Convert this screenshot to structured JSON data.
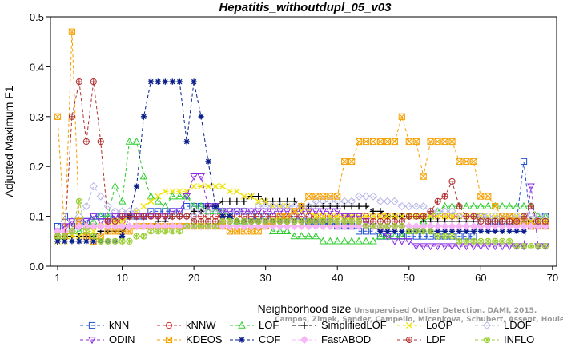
{
  "chart_data": {
    "type": "line",
    "title": "Hepatitis_withoutdupl_05_v03",
    "xlabel": "Neighborhood size",
    "ylabel": "Adjusted Maximum F1",
    "xlim": [
      0,
      70
    ],
    "ylim": [
      0,
      0.5
    ],
    "xticks": [
      1,
      10,
      20,
      30,
      40,
      50,
      60,
      70
    ],
    "yticks": [
      0.0,
      0.1,
      0.2,
      0.3,
      0.4,
      0.5
    ],
    "xtick_labels": [
      "1",
      "10",
      "20",
      "30",
      "40",
      "50",
      "60",
      "70"
    ],
    "ytick_labels": [
      "0.0",
      "0.1",
      "0.2",
      "0.3",
      "0.4",
      "0.5"
    ],
    "credit": [
      "Campos, Zimek, Sander, Campello, Micenkova, Schubert, Assent, Houle",
      "Unsupervised Outlier Detection. DAMI, 2015."
    ],
    "legend_position": "bottom",
    "x": [
      1,
      2,
      3,
      4,
      5,
      6,
      7,
      8,
      9,
      10,
      11,
      12,
      13,
      14,
      15,
      16,
      17,
      18,
      19,
      20,
      21,
      22,
      23,
      24,
      25,
      26,
      27,
      28,
      29,
      30,
      31,
      32,
      33,
      34,
      35,
      36,
      37,
      38,
      39,
      40,
      41,
      42,
      43,
      44,
      45,
      46,
      47,
      48,
      49,
      50,
      51,
      52,
      53,
      54,
      55,
      56,
      57,
      58,
      59,
      60,
      61,
      62,
      63,
      64,
      65,
      66,
      67,
      68,
      69
    ],
    "series": [
      {
        "name": "kNN",
        "color": "#1f4fd1",
        "marker": "square",
        "values": [
          0.08,
          0.1,
          0.08,
          0.08,
          0.09,
          0.1,
          0.1,
          0.1,
          0.1,
          0.1,
          0.1,
          0.1,
          0.1,
          0.11,
          0.11,
          0.11,
          0.11,
          0.11,
          0.12,
          0.12,
          0.12,
          0.12,
          0.12,
          0.11,
          0.11,
          0.11,
          0.11,
          0.1,
          0.1,
          0.1,
          0.1,
          0.1,
          0.1,
          0.1,
          0.1,
          0.09,
          0.09,
          0.09,
          0.09,
          0.08,
          0.08,
          0.08,
          0.07,
          0.07,
          0.07,
          0.06,
          0.06,
          0.06,
          0.06,
          0.06,
          0.06,
          0.06,
          0.06,
          0.06,
          0.06,
          0.06,
          0.06,
          0.06,
          0.06,
          0.1,
          0.09,
          0.09,
          0.09,
          0.09,
          0.09,
          0.21,
          0.08,
          0.09,
          0.1
        ]
      },
      {
        "name": "kNNW",
        "color": "#d22d2d",
        "marker": "circle",
        "values": [
          0.07,
          0.08,
          0.08,
          0.08,
          0.08,
          0.08,
          0.08,
          0.09,
          0.09,
          0.09,
          0.1,
          0.1,
          0.1,
          0.1,
          0.1,
          0.1,
          0.1,
          0.1,
          0.1,
          0.1,
          0.1,
          0.1,
          0.1,
          0.1,
          0.1,
          0.1,
          0.1,
          0.1,
          0.1,
          0.1,
          0.1,
          0.1,
          0.1,
          0.1,
          0.1,
          0.1,
          0.1,
          0.1,
          0.1,
          0.1,
          0.1,
          0.1,
          0.1,
          0.1,
          0.1,
          0.1,
          0.1,
          0.1,
          0.1,
          0.1,
          0.1,
          0.1,
          0.1,
          0.1,
          0.1,
          0.1,
          0.1,
          0.1,
          0.1,
          0.1,
          0.09,
          0.09,
          0.09,
          0.09,
          0.09,
          0.09,
          0.09,
          0.09,
          0.09
        ]
      },
      {
        "name": "LOF",
        "color": "#2ecc2e",
        "marker": "triangle-up",
        "values": [
          0.06,
          0.06,
          0.07,
          0.07,
          0.08,
          0.09,
          0.1,
          0.1,
          0.16,
          0.13,
          0.25,
          0.25,
          0.18,
          0.14,
          0.13,
          0.12,
          0.14,
          0.14,
          0.14,
          0.12,
          0.12,
          0.11,
          0.11,
          0.11,
          0.1,
          0.09,
          0.09,
          0.08,
          0.08,
          0.08,
          0.07,
          0.07,
          0.07,
          0.06,
          0.06,
          0.06,
          0.06,
          0.05,
          0.05,
          0.05,
          0.05,
          0.05,
          0.05,
          0.05,
          0.05,
          0.06,
          0.06,
          0.06,
          0.06,
          0.07,
          0.08,
          0.09,
          0.1,
          0.11,
          0.12,
          0.12,
          0.12,
          0.12,
          0.12,
          0.12,
          0.12,
          0.12,
          0.12,
          0.12,
          0.12,
          0.12,
          0.12,
          0.1,
          0.1
        ]
      },
      {
        "name": "SimplifiedLOF",
        "color": "#000000",
        "marker": "plus",
        "values": [
          0.05,
          0.06,
          0.06,
          0.06,
          0.06,
          0.06,
          0.07,
          0.07,
          0.07,
          0.07,
          0.08,
          0.08,
          0.08,
          0.08,
          0.09,
          0.09,
          0.1,
          0.1,
          0.1,
          0.11,
          0.11,
          0.12,
          0.12,
          0.13,
          0.13,
          0.13,
          0.13,
          0.14,
          0.14,
          0.13,
          0.13,
          0.13,
          0.13,
          0.13,
          0.12,
          0.12,
          0.12,
          0.12,
          0.12,
          0.12,
          0.12,
          0.12,
          0.12,
          0.12,
          0.11,
          0.11,
          0.1,
          0.1,
          0.1,
          0.1,
          0.1,
          0.09,
          0.09,
          0.09,
          0.09,
          0.09,
          0.09,
          0.09,
          0.09,
          0.09,
          0.09,
          0.09,
          0.09,
          0.09,
          0.09,
          0.09,
          0.09,
          0.09,
          0.09
        ]
      },
      {
        "name": "LoOP",
        "color": "#f2e200",
        "marker": "x",
        "values": [
          0.05,
          0.05,
          0.06,
          0.06,
          0.07,
          0.07,
          0.08,
          0.08,
          0.09,
          0.09,
          0.1,
          0.11,
          0.12,
          0.13,
          0.14,
          0.15,
          0.15,
          0.15,
          0.15,
          0.16,
          0.16,
          0.16,
          0.16,
          0.16,
          0.15,
          0.15,
          0.14,
          0.14,
          0.13,
          0.13,
          0.12,
          0.12,
          0.12,
          0.11,
          0.11,
          0.11,
          0.1,
          0.1,
          0.1,
          0.1,
          0.1,
          0.1,
          0.1,
          0.1,
          0.1,
          0.1,
          0.1,
          0.1,
          0.1,
          0.1,
          0.1,
          0.1,
          0.1,
          0.1,
          0.1,
          0.1,
          0.1,
          0.1,
          0.1,
          0.1,
          0.1,
          0.1,
          0.1,
          0.1,
          0.1,
          0.1,
          0.09,
          0.09,
          0.09
        ]
      },
      {
        "name": "LDOF",
        "color": "#b8b8e8",
        "marker": "diamond",
        "values": [
          0.07,
          0.08,
          0.09,
          0.1,
          0.12,
          0.16,
          0.14,
          0.12,
          0.11,
          0.11,
          0.11,
          0.11,
          0.1,
          0.1,
          0.1,
          0.1,
          0.1,
          0.1,
          0.1,
          0.1,
          0.11,
          0.11,
          0.11,
          0.11,
          0.11,
          0.11,
          0.11,
          0.11,
          0.12,
          0.12,
          0.12,
          0.12,
          0.12,
          0.12,
          0.12,
          0.12,
          0.13,
          0.13,
          0.13,
          0.13,
          0.13,
          0.13,
          0.14,
          0.14,
          0.14,
          0.13,
          0.13,
          0.13,
          0.12,
          0.12,
          0.12,
          0.12,
          0.11,
          0.11,
          0.11,
          0.11,
          0.1,
          0.1,
          0.1,
          0.1,
          0.1,
          0.1,
          0.1,
          0.1,
          0.1,
          0.1,
          0.1,
          0.1,
          0.1
        ]
      },
      {
        "name": "ODIN",
        "color": "#8a2be2",
        "marker": "triangle-down",
        "values": [
          0.07,
          0.08,
          0.09,
          0.09,
          0.09,
          0.1,
          0.09,
          0.09,
          0.1,
          0.1,
          0.1,
          0.1,
          0.1,
          0.1,
          0.1,
          0.1,
          0.11,
          0.11,
          0.14,
          0.18,
          0.18,
          0.12,
          0.12,
          0.11,
          0.11,
          0.11,
          0.11,
          0.11,
          0.11,
          0.11,
          0.11,
          0.11,
          0.11,
          0.11,
          0.11,
          0.11,
          0.11,
          0.11,
          0.11,
          0.11,
          0.1,
          0.1,
          0.1,
          0.09,
          0.08,
          0.07,
          0.06,
          0.05,
          0.05,
          0.05,
          0.04,
          0.04,
          0.04,
          0.04,
          0.04,
          0.04,
          0.04,
          0.04,
          0.04,
          0.04,
          0.04,
          0.04,
          0.04,
          0.04,
          0.04,
          0.04,
          0.16,
          0.04,
          0.04
        ]
      },
      {
        "name": "KDEOS",
        "color": "#f5a000",
        "marker": "box-x",
        "values": [
          0.3,
          0.06,
          0.47,
          0.09,
          0.06,
          0.05,
          0.06,
          0.07,
          0.07,
          0.07,
          0.07,
          0.08,
          0.08,
          0.08,
          0.08,
          0.08,
          0.08,
          0.08,
          0.08,
          0.08,
          0.08,
          0.08,
          0.08,
          0.08,
          0.07,
          0.07,
          0.07,
          0.07,
          0.07,
          0.08,
          0.09,
          0.1,
          0.1,
          0.11,
          0.12,
          0.14,
          0.14,
          0.14,
          0.14,
          0.14,
          0.21,
          0.21,
          0.25,
          0.25,
          0.25,
          0.25,
          0.25,
          0.25,
          0.3,
          0.25,
          0.25,
          0.18,
          0.25,
          0.25,
          0.25,
          0.25,
          0.21,
          0.21,
          0.21,
          0.14,
          0.14,
          0.12,
          0.1,
          0.1,
          0.09,
          0.09,
          0.08,
          0.08,
          0.08
        ]
      },
      {
        "name": "COF",
        "color": "#0a1e8c",
        "marker": "star",
        "values": [
          0.05,
          0.05,
          0.05,
          0.05,
          0.05,
          0.05,
          0.05,
          0.05,
          0.05,
          0.06,
          0.1,
          0.16,
          0.3,
          0.37,
          0.37,
          0.37,
          0.37,
          0.37,
          0.25,
          0.37,
          0.3,
          0.21,
          0.12,
          0.1,
          0.1,
          0.09,
          0.09,
          0.09,
          0.09,
          0.09,
          0.09,
          0.09,
          0.09,
          0.09,
          0.09,
          0.09,
          0.09,
          0.09,
          0.08,
          0.08,
          0.08,
          0.08,
          0.08,
          0.08,
          0.08,
          0.07,
          0.07,
          0.07,
          0.07,
          0.07,
          0.07,
          0.07,
          0.07,
          0.07,
          0.07,
          0.07,
          0.07,
          0.07,
          0.07,
          0.07,
          0.07,
          0.07,
          0.07,
          0.07,
          0.07,
          0.07,
          0.08,
          0.08,
          0.08
        ]
      },
      {
        "name": "FastABOD",
        "color": "#f7b6f7",
        "marker": "diamond-filled",
        "values": [
          0.07,
          0.07,
          0.07,
          0.08,
          0.08,
          0.08,
          0.08,
          0.08,
          0.08,
          0.08,
          0.08,
          0.08,
          0.08,
          0.08,
          0.08,
          0.08,
          0.08,
          0.08,
          0.08,
          0.08,
          0.08,
          0.08,
          0.08,
          0.08,
          0.08,
          0.08,
          0.08,
          0.08,
          0.08,
          0.08,
          0.08,
          0.08,
          0.08,
          0.08,
          0.08,
          0.08,
          0.08,
          0.08,
          0.08,
          0.08,
          0.08,
          0.08,
          0.08,
          0.08,
          0.08,
          0.08,
          0.08,
          0.08,
          0.08,
          0.08,
          0.08,
          0.08,
          0.08,
          0.08,
          0.08,
          0.08,
          0.08,
          0.08,
          0.08,
          0.08,
          0.08,
          0.08,
          0.08,
          0.08,
          0.08,
          0.08,
          0.08,
          0.08,
          0.08
        ]
      },
      {
        "name": "LDF",
        "color": "#b03030",
        "marker": "circle-plus",
        "values": [
          0.06,
          0.06,
          0.3,
          0.37,
          0.25,
          0.37,
          0.25,
          0.09,
          0.09,
          0.1,
          0.1,
          0.1,
          0.1,
          0.1,
          0.1,
          0.1,
          0.1,
          0.1,
          0.1,
          0.09,
          0.09,
          0.09,
          0.09,
          0.09,
          0.09,
          0.09,
          0.09,
          0.09,
          0.09,
          0.09,
          0.09,
          0.09,
          0.09,
          0.09,
          0.09,
          0.09,
          0.09,
          0.09,
          0.09,
          0.09,
          0.09,
          0.09,
          0.09,
          0.09,
          0.09,
          0.09,
          0.09,
          0.09,
          0.09,
          0.1,
          0.1,
          0.1,
          0.11,
          0.13,
          0.14,
          0.17,
          0.12,
          0.1,
          0.1,
          0.09,
          0.09,
          0.09,
          0.09,
          0.09,
          0.09,
          0.1,
          0.12,
          0.09,
          0.09
        ]
      },
      {
        "name": "INFLO",
        "color": "#9acd32",
        "marker": "star-circle",
        "values": [
          0.06,
          0.06,
          0.07,
          0.13,
          0.07,
          0.06,
          0.05,
          0.05,
          0.05,
          0.05,
          0.05,
          0.06,
          0.06,
          0.07,
          0.07,
          0.07,
          0.07,
          0.07,
          0.08,
          0.08,
          0.08,
          0.08,
          0.08,
          0.09,
          0.09,
          0.09,
          0.09,
          0.09,
          0.09,
          0.09,
          0.09,
          0.09,
          0.09,
          0.09,
          0.09,
          0.09,
          0.09,
          0.09,
          0.09,
          0.09,
          0.09,
          0.09,
          0.09,
          0.08,
          0.08,
          0.08,
          0.08,
          0.08,
          0.08,
          0.07,
          0.07,
          0.07,
          0.07,
          0.06,
          0.06,
          0.06,
          0.05,
          0.05,
          0.05,
          0.05,
          0.05,
          0.05,
          0.05,
          0.05,
          0.04,
          0.04,
          0.04,
          0.04,
          0.04
        ]
      }
    ]
  }
}
